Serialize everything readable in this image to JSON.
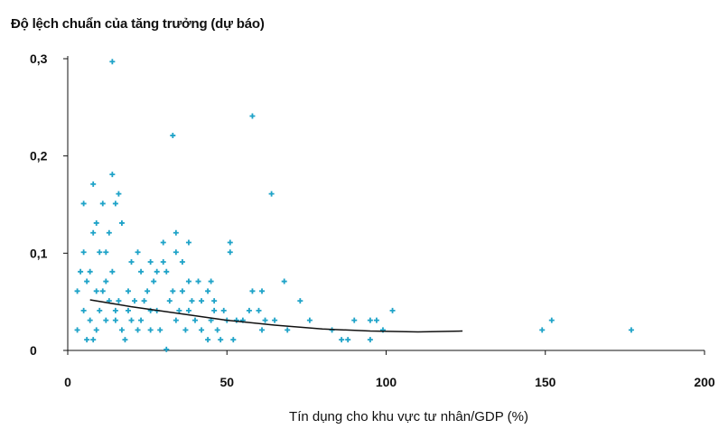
{
  "chart_data": {
    "type": "scatter",
    "title": "Độ lệch chuẩn của tăng trưởng (dự báo)",
    "xlabel": "Tín dụng cho khu vực tư nhân/GDP (%)",
    "ylabel": "",
    "xlim": [
      0,
      200
    ],
    "ylim": [
      0,
      0.3
    ],
    "xticks": [
      0,
      50,
      100,
      150,
      200
    ],
    "xtick_labels": [
      "0",
      "50",
      "100",
      "150",
      "200"
    ],
    "yticks": [
      0,
      0.1,
      0.2,
      0.3
    ],
    "ytick_labels": [
      "0",
      "0,1",
      "0,2",
      "0,3"
    ],
    "grid": false,
    "colors": {
      "points": "#1fa3c8",
      "fit_line": "#111111",
      "axis": "#111111"
    },
    "series": [
      {
        "type": "scatter",
        "points": [
          [
            14,
            0.297
          ],
          [
            58,
            0.241
          ],
          [
            33,
            0.221
          ],
          [
            64,
            0.161
          ],
          [
            14,
            0.181
          ],
          [
            16,
            0.161
          ],
          [
            15,
            0.151
          ],
          [
            11,
            0.151
          ],
          [
            5,
            0.151
          ],
          [
            8,
            0.171
          ],
          [
            17,
            0.131
          ],
          [
            13,
            0.121
          ],
          [
            9,
            0.131
          ],
          [
            8,
            0.121
          ],
          [
            5,
            0.101
          ],
          [
            10,
            0.101
          ],
          [
            12,
            0.101
          ],
          [
            34,
            0.121
          ],
          [
            38,
            0.111
          ],
          [
            30,
            0.111
          ],
          [
            51,
            0.111
          ],
          [
            51,
            0.101
          ],
          [
            22,
            0.101
          ],
          [
            30,
            0.091
          ],
          [
            34,
            0.101
          ],
          [
            20,
            0.091
          ],
          [
            26,
            0.091
          ],
          [
            23,
            0.081
          ],
          [
            28,
            0.081
          ],
          [
            31,
            0.081
          ],
          [
            36,
            0.091
          ],
          [
            45,
            0.071
          ],
          [
            38,
            0.071
          ],
          [
            41,
            0.071
          ],
          [
            68,
            0.071
          ],
          [
            58,
            0.061
          ],
          [
            61,
            0.061
          ],
          [
            73,
            0.051
          ],
          [
            90,
            0.031
          ],
          [
            95,
            0.031
          ],
          [
            102,
            0.041
          ],
          [
            76,
            0.031
          ],
          [
            83,
            0.021
          ],
          [
            86,
            0.011
          ],
          [
            88,
            0.011
          ],
          [
            95,
            0.011
          ],
          [
            99,
            0.021
          ],
          [
            97,
            0.031
          ],
          [
            149,
            0.021
          ],
          [
            152,
            0.031
          ],
          [
            177,
            0.021
          ],
          [
            62,
            0.031
          ],
          [
            65,
            0.031
          ],
          [
            69,
            0.021
          ],
          [
            52,
            0.011
          ],
          [
            48,
            0.011
          ],
          [
            44,
            0.011
          ],
          [
            37,
            0.021
          ],
          [
            31,
            0.001
          ],
          [
            8,
            0.011
          ],
          [
            22,
            0.021
          ],
          [
            55,
            0.031
          ],
          [
            46,
            0.041
          ],
          [
            49,
            0.041
          ],
          [
            53,
            0.031
          ],
          [
            28,
            0.041
          ],
          [
            42,
            0.051
          ],
          [
            39,
            0.051
          ],
          [
            36,
            0.061
          ],
          [
            18,
            0.011
          ],
          [
            4,
            0.081
          ],
          [
            6,
            0.071
          ],
          [
            9,
            0.061
          ],
          [
            11,
            0.061
          ],
          [
            13,
            0.051
          ],
          [
            16,
            0.051
          ],
          [
            19,
            0.041
          ],
          [
            21,
            0.051
          ],
          [
            24,
            0.051
          ],
          [
            26,
            0.041
          ],
          [
            32,
            0.051
          ],
          [
            3,
            0.061
          ],
          [
            7,
            0.081
          ],
          [
            12,
            0.071
          ],
          [
            14,
            0.081
          ],
          [
            19,
            0.061
          ],
          [
            25,
            0.061
          ],
          [
            27,
            0.071
          ],
          [
            33,
            0.061
          ],
          [
            44,
            0.061
          ],
          [
            46,
            0.051
          ],
          [
            57,
            0.041
          ],
          [
            60,
            0.041
          ],
          [
            5,
            0.041
          ],
          [
            7,
            0.031
          ],
          [
            10,
            0.041
          ],
          [
            15,
            0.031
          ],
          [
            17,
            0.021
          ],
          [
            20,
            0.031
          ],
          [
            23,
            0.031
          ],
          [
            29,
            0.021
          ],
          [
            34,
            0.031
          ],
          [
            40,
            0.031
          ],
          [
            42,
            0.021
          ],
          [
            45,
            0.031
          ],
          [
            3,
            0.021
          ],
          [
            6,
            0.011
          ],
          [
            9,
            0.021
          ],
          [
            12,
            0.031
          ],
          [
            15,
            0.041
          ],
          [
            26,
            0.021
          ],
          [
            35,
            0.041
          ],
          [
            38,
            0.041
          ],
          [
            47,
            0.021
          ],
          [
            50,
            0.031
          ],
          [
            61,
            0.021
          ]
        ]
      },
      {
        "type": "line",
        "points": [
          [
            7,
            0.052
          ],
          [
            20,
            0.045
          ],
          [
            35,
            0.038
          ],
          [
            50,
            0.031
          ],
          [
            65,
            0.026
          ],
          [
            80,
            0.022
          ],
          [
            95,
            0.02
          ],
          [
            110,
            0.019
          ],
          [
            124,
            0.02
          ]
        ]
      }
    ]
  }
}
